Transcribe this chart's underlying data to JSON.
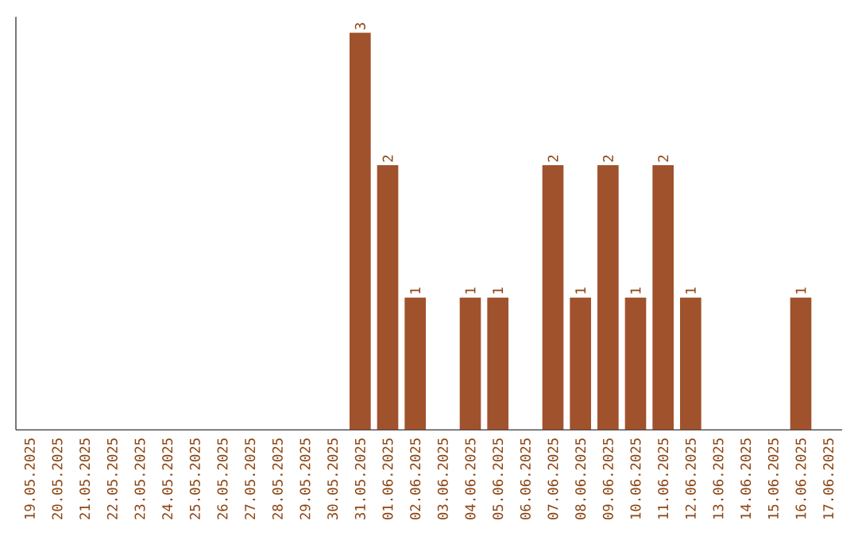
{
  "chart_data": {
    "type": "bar",
    "color": "#a0522d",
    "categories": [
      "19.05.2025",
      "20.05.2025",
      "21.05.2025",
      "22.05.2025",
      "23.05.2025",
      "24.05.2025",
      "25.05.2025",
      "26.05.2025",
      "27.05.2025",
      "28.05.2025",
      "29.05.2025",
      "30.05.2025",
      "31.05.2025",
      "01.06.2025",
      "02.06.2025",
      "03.06.2025",
      "04.06.2025",
      "05.06.2025",
      "06.06.2025",
      "07.06.2025",
      "08.06.2025",
      "09.06.2025",
      "10.06.2025",
      "11.06.2025",
      "12.06.2025",
      "13.06.2025",
      "14.06.2025",
      "15.06.2025",
      "16.06.2025",
      "17.06.2025"
    ],
    "values": [
      null,
      null,
      null,
      null,
      null,
      null,
      null,
      null,
      null,
      null,
      null,
      null,
      3,
      2,
      1,
      null,
      1,
      1,
      null,
      2,
      1,
      2,
      1,
      2,
      1,
      null,
      null,
      null,
      1,
      null
    ],
    "data_labels": true,
    "tick_labels": "x"
  }
}
